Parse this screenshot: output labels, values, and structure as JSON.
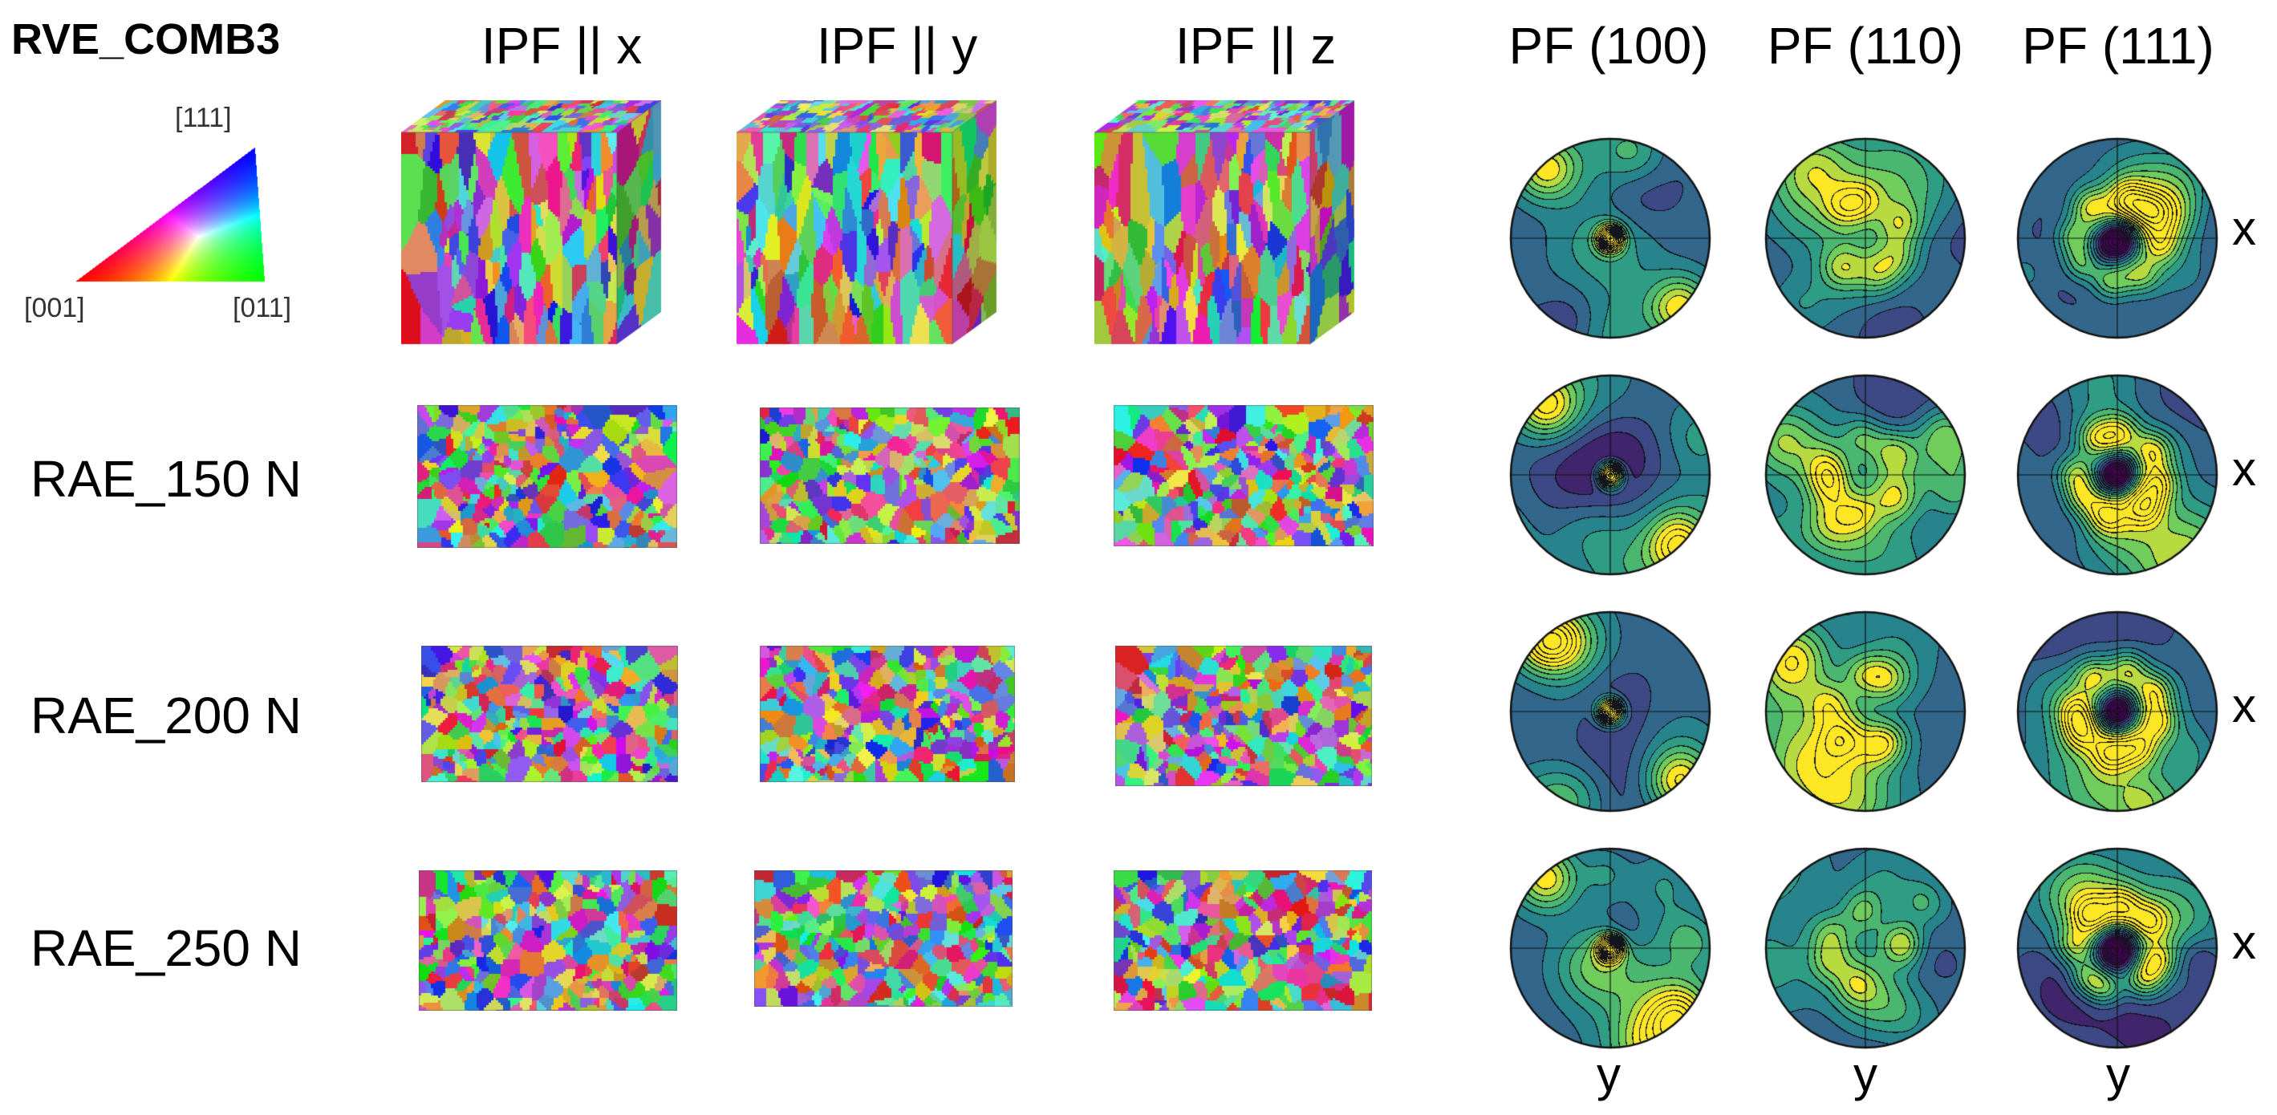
{
  "figure": {
    "title": "RVE_COMB3",
    "column_headers": [
      "IPF || x",
      "IPF || y",
      "IPF || z",
      "PF (100)",
      "PF (110)",
      "PF (111)"
    ],
    "row_labels": [
      "RAE_150 N",
      "RAE_200 N",
      "RAE_250 N"
    ],
    "ipf_key": {
      "label_top": "[111]",
      "label_left": "[001]",
      "label_right": "[011]"
    },
    "pole_figure_axis_labels": {
      "right": "x",
      "bottom": "y"
    },
    "colors": {
      "pf_low": "#3b2f7e",
      "pf_mid": "#21908c",
      "pf_high": "#fde725"
    }
  }
}
